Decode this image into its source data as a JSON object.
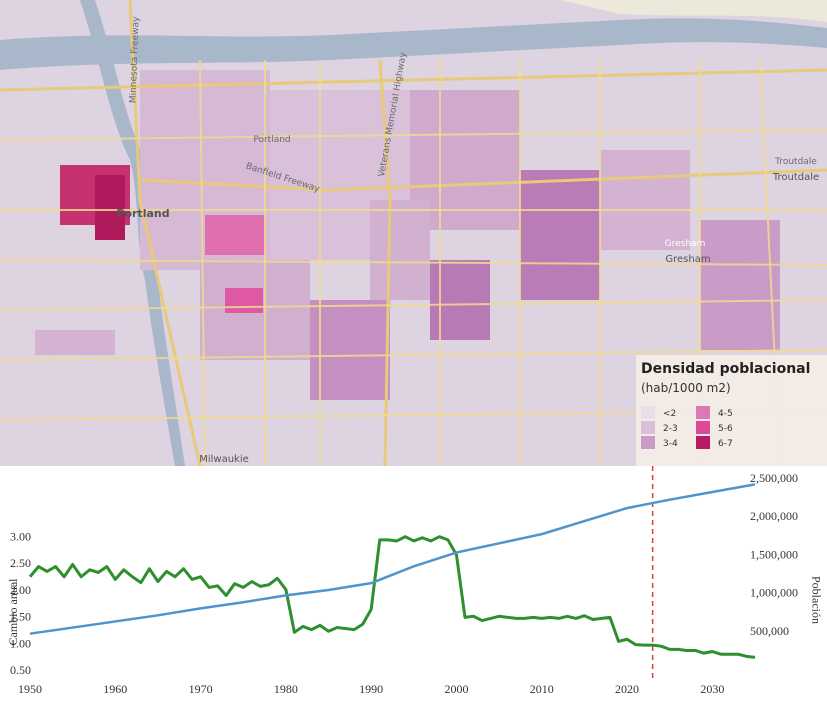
{
  "map": {
    "labels": [
      "Minnesota Freeway",
      "Portland",
      "Portland",
      "Banfield Freeway",
      "Veterans Memorial Highway",
      "Gresham",
      "Gresham",
      "Troutdale",
      "Troutdale",
      "Milwaukie"
    ],
    "legend": {
      "title": "Densidad poblacional",
      "subtitle": "(hab/1000 m2)",
      "items": [
        {
          "label": "<2",
          "color": "#e9dde9"
        },
        {
          "label": "2-3",
          "color": "#dbbfda"
        },
        {
          "label": "3-4",
          "color": "#c99bc6"
        },
        {
          "label": "4-5",
          "color": "#dc78b5"
        },
        {
          "label": "5-6",
          "color": "#df4799"
        },
        {
          "label": "6-7",
          "color": "#b81a68"
        }
      ]
    }
  },
  "chart_data": {
    "type": "line",
    "y_label": "Cambio anual",
    "y2_label": "Población",
    "xlim": [
      1950,
      2035
    ],
    "xticks": [
      1950,
      1960,
      1970,
      1980,
      1990,
      2000,
      2010,
      2020,
      2030
    ],
    "ylim": [
      0,
      4.1
    ],
    "yticks": [
      {
        "value": 0.5,
        "label": "0.50"
      },
      {
        "value": 1,
        "label": "1.00"
      },
      {
        "value": 1.5,
        "label": "1.50"
      },
      {
        "value": 2,
        "label": "2.00"
      },
      {
        "value": 2.5,
        "label": "2.50"
      },
      {
        "value": 3,
        "label": "3.00"
      }
    ],
    "y2lim": [
      -360000,
      2500000
    ],
    "y2ticks": [
      {
        "value": 500000,
        "label": "500,000"
      },
      {
        "value": 1000000,
        "label": "1,000,000"
      },
      {
        "value": 1500000,
        "label": "1,500,000"
      },
      {
        "value": 2000000,
        "label": "2,000,000"
      },
      {
        "value": 2500000,
        "label": "2,500,000"
      }
    ],
    "vline": {
      "x": 2023,
      "color": "#e03a3a"
    },
    "series": [
      {
        "color": "#2f8f2f",
        "axis": "y",
        "x": [
          1950,
          1951,
          1952,
          1953,
          1954,
          1955,
          1956,
          1957,
          1958,
          1959,
          1960,
          1961,
          1962,
          1963,
          1964,
          1965,
          1966,
          1967,
          1968,
          1969,
          1970,
          1971,
          1972,
          1973,
          1974,
          1975,
          1976,
          1977,
          1978,
          1979,
          1980,
          1981,
          1982,
          1983,
          1984,
          1985,
          1986,
          1987,
          1988,
          1989,
          1990,
          1991,
          1992,
          1993,
          1994,
          1995,
          1996,
          1997,
          1998,
          1999,
          2000,
          2001,
          2002,
          2003,
          2004,
          2005,
          2006,
          2007,
          2008,
          2009,
          2010,
          2011,
          2012,
          2013,
          2014,
          2015,
          2016,
          2017,
          2018,
          2019,
          2020,
          2021,
          2022,
          2023,
          2024,
          2025,
          2026,
          2027,
          2028,
          2029,
          2030,
          2031,
          2032,
          2033,
          2034,
          2035
        ],
        "values": [
          2.27,
          2.46,
          2.37,
          2.46,
          2.27,
          2.5,
          2.27,
          2.4,
          2.35,
          2.46,
          2.22,
          2.4,
          2.27,
          2.16,
          2.42,
          2.18,
          2.37,
          2.27,
          2.42,
          2.22,
          2.27,
          2.07,
          2.1,
          1.92,
          2.14,
          2.07,
          2.18,
          2.09,
          2.12,
          2.24,
          2.03,
          1.23,
          1.34,
          1.28,
          1.36,
          1.25,
          1.32,
          1.3,
          1.28,
          1.38,
          1.66,
          2.96,
          2.96,
          2.94,
          3.02,
          2.94,
          3.0,
          2.94,
          3.02,
          2.96,
          2.68,
          1.51,
          1.53,
          1.45,
          1.49,
          1.53,
          1.51,
          1.49,
          1.49,
          1.51,
          1.49,
          1.51,
          1.49,
          1.53,
          1.49,
          1.54,
          1.47,
          1.49,
          1.51,
          1.06,
          1.1,
          1.0,
          0.99,
          0.99,
          0.97,
          0.91,
          0.91,
          0.89,
          0.89,
          0.84,
          0.87,
          0.82,
          0.82,
          0.82,
          0.78,
          0.76
        ]
      },
      {
        "color": "#4f95cd",
        "axis": "y2",
        "x": [
          1950,
          1955,
          1960,
          1965,
          1970,
          1975,
          1980,
          1985,
          1990,
          1995,
          2000,
          2005,
          2010,
          2015,
          2020,
          2025,
          2030,
          2035
        ],
        "values": [
          480000,
          560000,
          640000,
          720000,
          810000,
          890000,
          980000,
          1050000,
          1140000,
          1360000,
          1540000,
          1660000,
          1780000,
          1950000,
          2120000,
          2230000,
          2330000,
          2430000
        ]
      }
    ]
  }
}
